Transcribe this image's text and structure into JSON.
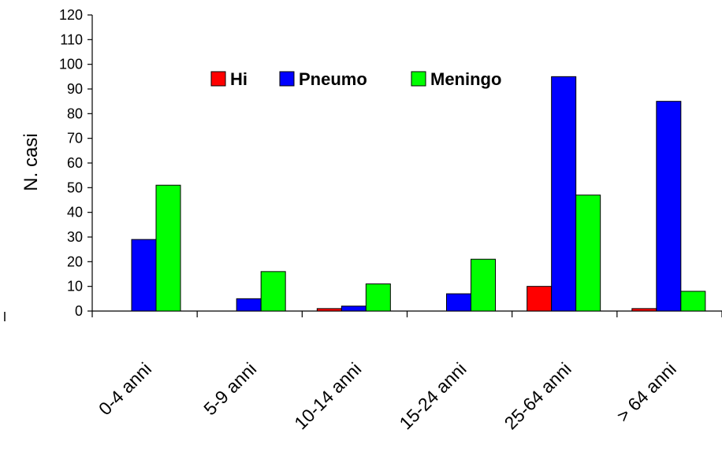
{
  "chart_data": {
    "type": "bar",
    "title": "",
    "xlabel": "",
    "ylabel": "N. casi",
    "ylim": [
      0,
      120
    ],
    "yticks": [
      0,
      10,
      20,
      30,
      40,
      50,
      60,
      70,
      80,
      90,
      100,
      110,
      120
    ],
    "grid": false,
    "legend_position": "top-center",
    "categories": [
      "0-4 anni",
      "5-9 anni",
      "10-14 anni",
      "15-24 anni",
      "25-64 anni",
      "> 64 anni"
    ],
    "series": [
      {
        "name": "Hi",
        "color": "#ff0000",
        "values": [
          0,
          0,
          1,
          0,
          10,
          1
        ]
      },
      {
        "name": "Pneumo",
        "color": "#0000ff",
        "values": [
          29,
          5,
          2,
          7,
          95,
          85
        ]
      },
      {
        "name": "Meningo",
        "color": "#00ff00",
        "values": [
          51,
          16,
          11,
          21,
          47,
          8
        ]
      }
    ]
  }
}
